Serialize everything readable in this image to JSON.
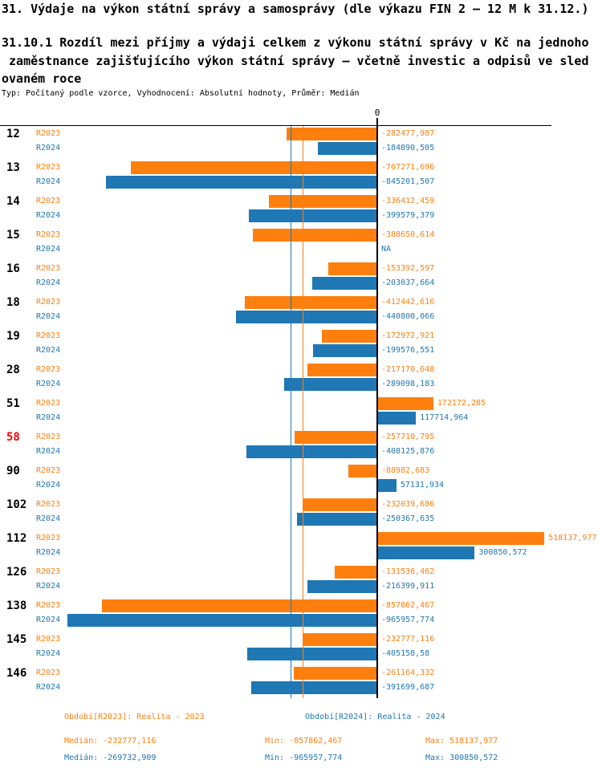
{
  "page_title": "31. Výdaje na výkon státní správy a samosprávy (dle výkazu FIN 2 – 12 M k 31.12.)",
  "subtitle_lines": [
    "31.10.1 Rozdíl mezi příjmy a výdaji celkem z výkonu státní správy v Kč na jednoho",
    " zaměstnance zajišťujícího výkon státní správy – včetně investic a odpisů ve sled",
    "ovaném roce"
  ],
  "meta": "Typ: Počítaný podle vzorce, Vyhodnocení: Absolutní hodnoty, Průměr: Medián",
  "colors": {
    "r2023": "#ff7f0e",
    "r2024": "#1f77b4",
    "highlight": "#ff0000",
    "axis": "#000000"
  },
  "chart_data": {
    "type": "bar",
    "orientation": "horizontal",
    "zero_tick_label": "0",
    "xlim": [
      -1175000,
      542500
    ],
    "grid": false,
    "categories": [
      "12",
      "13",
      "14",
      "15",
      "16",
      "18",
      "19",
      "28",
      "51",
      "58",
      "90",
      "102",
      "112",
      "126",
      "138",
      "145",
      "146"
    ],
    "highlighted_categories": [
      "58"
    ],
    "series": [
      {
        "name": "R2023",
        "legend": "Období[R2023]: Realita - 2023",
        "color": "#ff7f0e",
        "values": [
          -282477.987,
          -767271.696,
          -336412.459,
          -388650.614,
          -153392.597,
          -412442.616,
          -172972.921,
          -217170.648,
          172172.285,
          -257710.795,
          -88982.683,
          -232039.686,
          518137.977,
          -131536.462,
          -857862.467,
          -232777.116,
          -261164.332
        ],
        "labels": [
          "-282477,987",
          "-767271,696",
          "-336412,459",
          "-388650,614",
          "-153392,597",
          "-412442,616",
          "-172972,921",
          "-217170,648",
          "172172,285",
          "-257710,795",
          "-88982,683",
          "-232039,686",
          "518137,977",
          "-131536,462",
          "-857862,467",
          "-232777,116",
          "-261164,332"
        ]
      },
      {
        "name": "R2024",
        "legend": "Období[R2024]: Realita - 2024",
        "color": "#1f77b4",
        "values": [
          -184890.505,
          -845201.507,
          -399579.379,
          null,
          -203037.664,
          -440800.066,
          -199576.551,
          -289098.183,
          117714.964,
          -408125.876,
          57131.934,
          -250367.635,
          300850.572,
          -216399.911,
          -965957.774,
          -405158.58,
          -391699.687
        ],
        "labels": [
          "-184890,505",
          "-845201,507",
          "-399579,379",
          "NA",
          "-203037,664",
          "-440800,066",
          "-199576,551",
          "-289098,183",
          "117714,964",
          "-408125,876",
          "57131,934",
          "-250367,635",
          "300850,572",
          "-216399,911",
          "-965957,774",
          "-405158,58",
          "-391699,687"
        ]
      }
    ],
    "medians": {
      "r2023": -232777.116,
      "r2024": -269732.909
    }
  },
  "legend": {
    "r2023": "Období[R2023]: Realita - 2023",
    "r2024": "Období[R2024]: Realita - 2024"
  },
  "stats": {
    "r2023": {
      "median": "Medián: -232777,116",
      "min": "Min: -857862,467",
      "max": "Max: 518137,977"
    },
    "r2024": {
      "median": "Medián: -269732,909",
      "min": "Min: -965957,774",
      "max": "Max: 300850,572"
    }
  }
}
